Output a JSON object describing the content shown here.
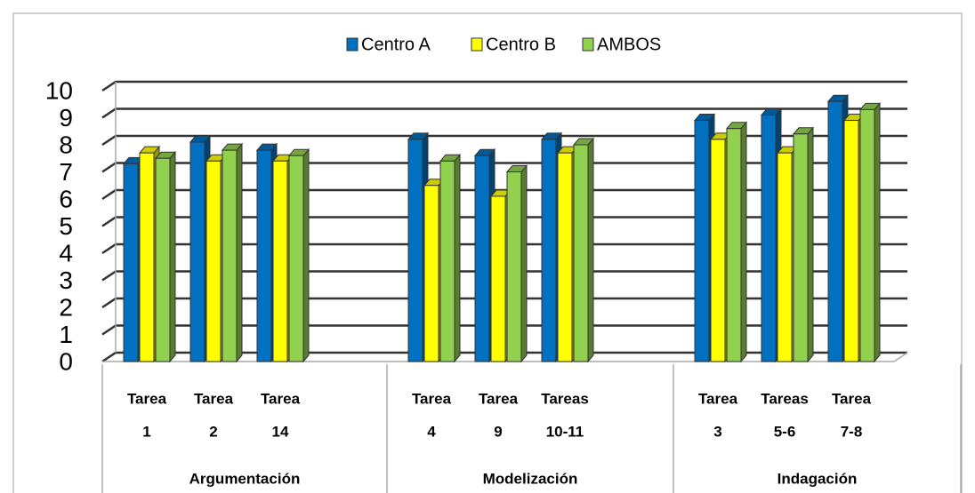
{
  "chart_data": {
    "type": "bar3d",
    "groups": [
      {
        "label": "Argumentación",
        "categories": [
          [
            "Tarea",
            "1"
          ],
          [
            "Tarea",
            "2"
          ],
          [
            "Tarea",
            "14"
          ]
        ]
      },
      {
        "label": "Modelización",
        "categories": [
          [
            "Tarea",
            "4"
          ],
          [
            "Tarea",
            "9"
          ],
          [
            "Tareas",
            "10-11"
          ]
        ]
      },
      {
        "label": "Indagación",
        "categories": [
          [
            "Tarea",
            "3"
          ],
          [
            "Tareas",
            "5-6"
          ],
          [
            "Tarea",
            "7-8"
          ]
        ]
      }
    ],
    "series": [
      {
        "name": "Centro A",
        "color": "#0070c0",
        "values": [
          7.3,
          8.1,
          7.8,
          8.2,
          7.6,
          8.2,
          8.9,
          9.1,
          9.6
        ]
      },
      {
        "name": "Centro B",
        "color": "#ffff00",
        "values": [
          7.7,
          7.4,
          7.4,
          6.5,
          6.1,
          7.7,
          8.2,
          7.7,
          8.9
        ]
      },
      {
        "name": "AMBOS",
        "color": "#92d050",
        "values": [
          7.5,
          7.8,
          7.6,
          7.4,
          7.0,
          8.0,
          8.6,
          8.4,
          9.3
        ]
      }
    ],
    "ylim": [
      0,
      10
    ],
    "yticks": [
      0,
      1,
      2,
      3,
      4,
      5,
      6,
      7,
      8,
      9,
      10
    ],
    "grid": true,
    "legend": "top"
  }
}
